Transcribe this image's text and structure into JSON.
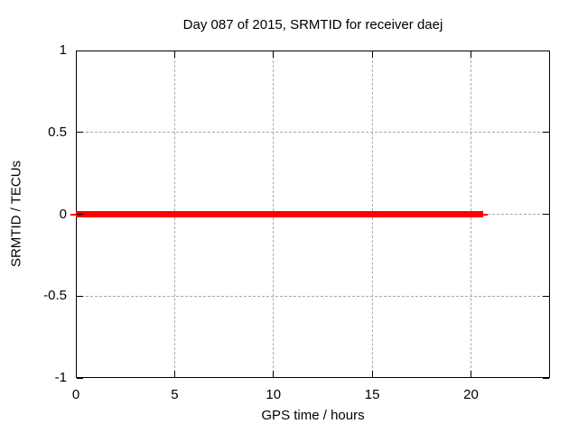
{
  "title": "Day 087 of 2015, SRMTID for receiver daej",
  "colors": {
    "background": "#ffffff",
    "text": "#000000",
    "axis_border": "#000000",
    "grid": "#aaaaaa",
    "series": "#ff0000"
  },
  "chart_data": {
    "type": "line",
    "title": "Day 087 of 2015, SRMTID for receiver daej",
    "xlabel": "GPS time / hours",
    "ylabel": "SRMTID / TECUs",
    "xlim": [
      0,
      24
    ],
    "ylim": [
      -1,
      1
    ],
    "xticks": [
      0,
      5,
      10,
      15,
      20
    ],
    "yticks": [
      1,
      0.5,
      0,
      -0.5,
      -1
    ],
    "grid": true,
    "legend_position": "none",
    "series": [
      {
        "name": "SRMTID",
        "color": "#ff0000",
        "style": "thick flat line of overlapping point markers at y=0",
        "x_start": 0,
        "x_end": 20.6,
        "y_value": 0,
        "points": [
          [
            0,
            0
          ],
          [
            2,
            0
          ],
          [
            4,
            0
          ],
          [
            6,
            0
          ],
          [
            8,
            0
          ],
          [
            10,
            0
          ],
          [
            12,
            0
          ],
          [
            14,
            0
          ],
          [
            16,
            0
          ],
          [
            18,
            0
          ],
          [
            20,
            0
          ],
          [
            20.6,
            0
          ]
        ]
      }
    ]
  }
}
